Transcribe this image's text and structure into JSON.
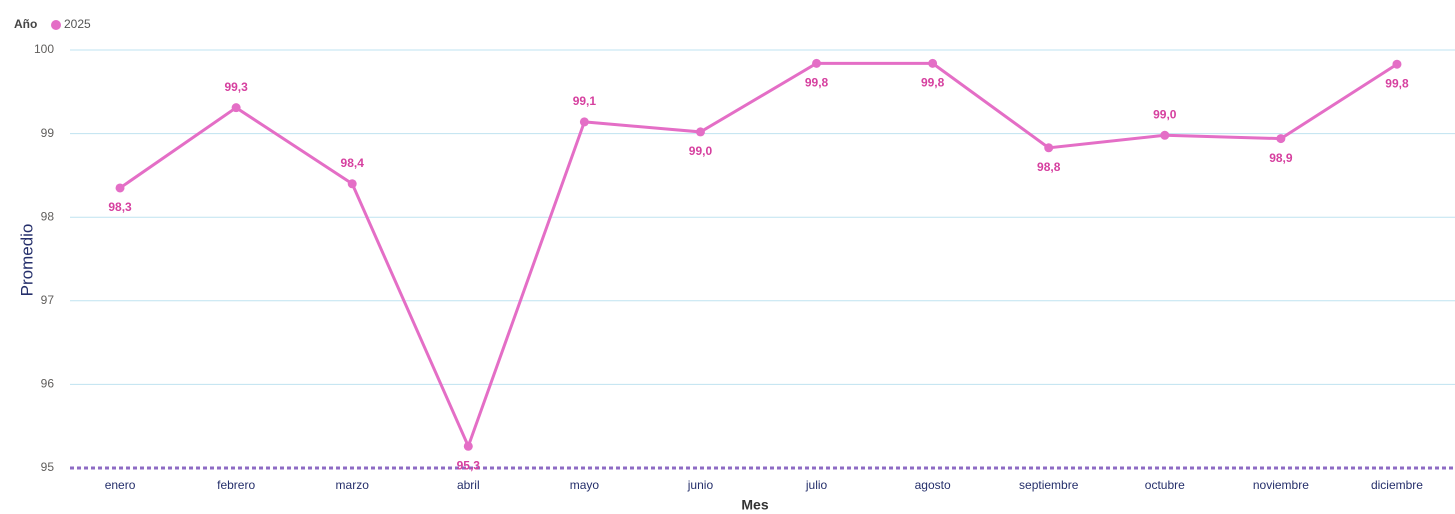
{
  "chart_data": {
    "type": "line",
    "legend_title": "Año",
    "x_label": "Mes",
    "y_label": "Promedio",
    "categories": [
      "enero",
      "febrero",
      "marzo",
      "abril",
      "mayo",
      "junio",
      "julio",
      "agosto",
      "septiembre",
      "octubre",
      "noviembre",
      "diciembre"
    ],
    "series": [
      {
        "name": "2025",
        "color": "#e46ec6",
        "values": [
          98.35,
          99.31,
          98.4,
          95.26,
          99.14,
          99.02,
          99.84,
          99.84,
          98.83,
          98.98,
          98.94,
          99.83
        ],
        "value_labels": [
          "98,3",
          "99,3",
          "98,4",
          "95,3",
          "99,1",
          "99,0",
          "99,8",
          "99,8",
          "98,8",
          "99,0",
          "98,9",
          "99,8"
        ]
      }
    ],
    "ylim": [
      95,
      100
    ],
    "yticks": [
      95,
      96,
      97,
      98,
      99,
      100
    ],
    "grid": true
  }
}
